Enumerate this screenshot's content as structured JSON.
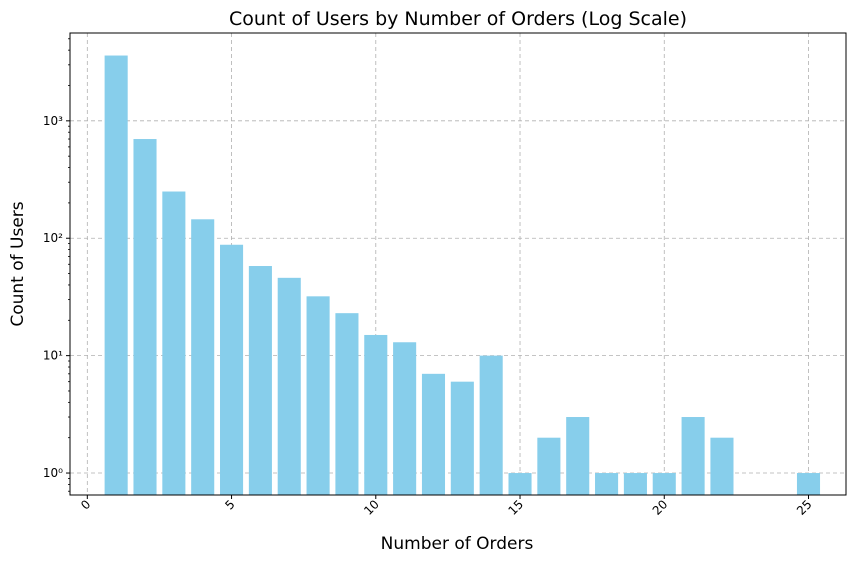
{
  "chart_data": {
    "type": "bar",
    "title": "Count of Users by Number of Orders (Log Scale)",
    "xlabel": "Number of Orders",
    "ylabel": "Count of Users",
    "yscale": "log",
    "grid": true,
    "bar_color": "#87CEEB",
    "xlim": [
      -0.6,
      26.3
    ],
    "ylim": [
      0.65,
      5600
    ],
    "x_ticks": [
      0,
      5,
      10,
      15,
      20,
      25
    ],
    "x_tick_labels": [
      "0",
      "5",
      "10",
      "15",
      "20",
      "25"
    ],
    "y_ticks": [
      1,
      10,
      100,
      1000
    ],
    "y_tick_labels": [
      "10⁰",
      "10¹",
      "10²",
      "10³"
    ],
    "x": [
      1,
      2,
      3,
      4,
      5,
      6,
      7,
      8,
      9,
      10,
      11,
      12,
      13,
      14,
      15,
      16,
      17,
      18,
      19,
      20,
      21,
      22,
      25
    ],
    "values": [
      3600,
      700,
      250,
      145,
      88,
      58,
      46,
      32,
      23,
      15,
      13,
      7,
      6,
      10,
      1,
      2,
      3,
      1,
      1,
      1,
      3,
      2,
      1
    ]
  }
}
